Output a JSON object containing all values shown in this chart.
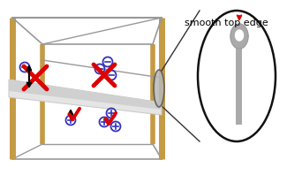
{
  "bg_color": "#ffffff",
  "wood_color": "#c49a45",
  "wire_color": "#999999",
  "foil_color": "#e8e8e8",
  "ion_color": "#3333bb",
  "red_color": "#dd0000",
  "black_color": "#111111",
  "ellipse_line_color": "#222222",
  "foil_shape_color": "#aaaaaa",
  "label_text": "smooth top edge",
  "label_fontsize": 8.0
}
